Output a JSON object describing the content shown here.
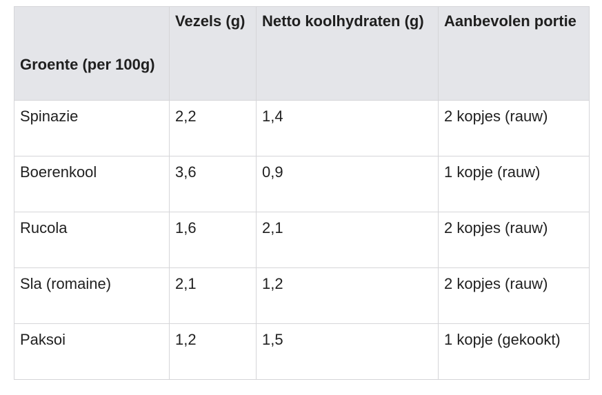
{
  "table": {
    "headers": [
      "Groente (per 100g)",
      "Vezels (g)",
      "Netto koolhydraten (g)",
      "Aanbevolen portie"
    ],
    "rows": [
      [
        "Spinazie",
        "2,2",
        "1,4",
        "2 kopjes (rauw)"
      ],
      [
        "Boerenkool",
        "3,6",
        "0,9",
        "1 kopje (rauw)"
      ],
      [
        "Rucola",
        "1,6",
        "2,1",
        "2 kopjes (rauw)"
      ],
      [
        "Sla (romaine)",
        "2,1",
        "1,2",
        "2 kopjes (rauw)"
      ],
      [
        "Paksoi",
        "1,2",
        "1,5",
        "1 kopje (gekookt)"
      ]
    ]
  },
  "colors": {
    "header_bg": "#e4e5e9",
    "border": "#d5d5d8",
    "text": "#1f1f1f"
  }
}
